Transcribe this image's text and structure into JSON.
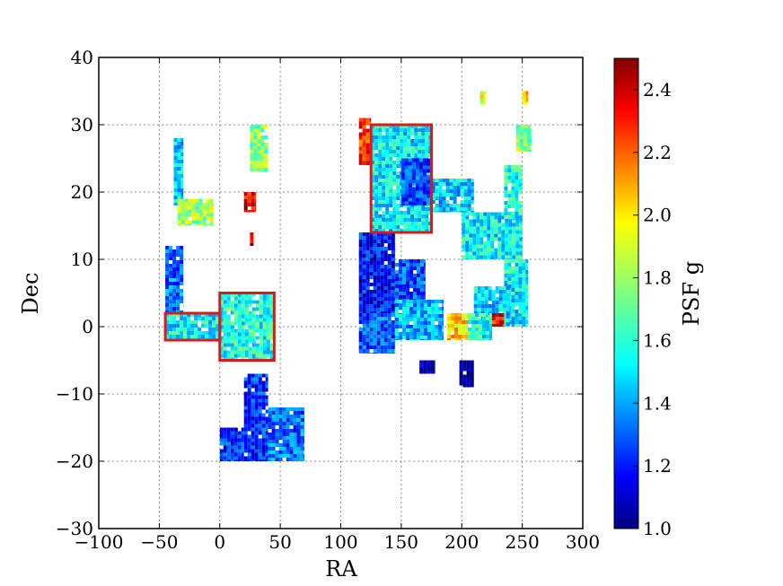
{
  "chart_data": {
    "type": "scatter",
    "xlabel": "RA",
    "ylabel": "Dec",
    "xlim": [
      -100,
      300
    ],
    "ylim": [
      -30,
      40
    ],
    "xticks": [
      -100,
      -50,
      0,
      50,
      100,
      150,
      200,
      250,
      300
    ],
    "yticks": [
      -30,
      -20,
      -10,
      0,
      10,
      20,
      30,
      40
    ],
    "grid": true,
    "colorbar": {
      "label": "PSF g",
      "range": [
        1.0,
        2.5
      ],
      "ticks": [
        1.0,
        1.2,
        1.4,
        1.6,
        1.8,
        2.0,
        2.2,
        2.4
      ],
      "colormap": "jet"
    },
    "regions": [
      {
        "ra_min": 125,
        "ra_max": 175,
        "dec_min": 14,
        "dec_max": 30,
        "psf": 1.55
      },
      {
        "ra_min": 115,
        "ra_max": 125,
        "dec_min": 24,
        "dec_max": 31,
        "psf": 2.25
      },
      {
        "ra_min": 175,
        "ra_max": 210,
        "dec_min": 17,
        "dec_max": 22,
        "psf": 1.5
      },
      {
        "ra_min": 150,
        "ra_max": 175,
        "dec_min": 18,
        "dec_max": 25,
        "psf": 1.3
      },
      {
        "ra_min": 115,
        "ra_max": 145,
        "dec_min": 2,
        "dec_max": 14,
        "psf": 1.2
      },
      {
        "ra_min": 145,
        "ra_max": 170,
        "dec_min": 1,
        "dec_max": 10,
        "psf": 1.3
      },
      {
        "ra_min": 115,
        "ra_max": 145,
        "dec_min": -4,
        "dec_max": 2,
        "psf": 1.3
      },
      {
        "ra_min": 145,
        "ra_max": 185,
        "dec_min": -2,
        "dec_max": 4,
        "psf": 1.45
      },
      {
        "ra_min": 200,
        "ra_max": 250,
        "dec_min": 10,
        "dec_max": 17,
        "psf": 1.55
      },
      {
        "ra_min": 235,
        "ra_max": 255,
        "dec_min": 0,
        "dec_max": 10,
        "psf": 1.55
      },
      {
        "ra_min": 210,
        "ra_max": 240,
        "dec_min": 0,
        "dec_max": 6,
        "psf": 1.5
      },
      {
        "ra_min": 188,
        "ra_max": 205,
        "dec_min": -2,
        "dec_max": 2,
        "psf": 2.0
      },
      {
        "ra_min": 205,
        "ra_max": 225,
        "dec_min": -2,
        "dec_max": 2,
        "psf": 1.6
      },
      {
        "ra_min": 225,
        "ra_max": 235,
        "dec_min": 0,
        "dec_max": 2,
        "psf": 2.3
      },
      {
        "ra_min": 235,
        "ra_max": 250,
        "dec_min": 16,
        "dec_max": 24,
        "psf": 1.6
      },
      {
        "ra_min": 245,
        "ra_max": 258,
        "dec_min": 26,
        "dec_max": 30,
        "psf": 1.75
      },
      {
        "ra_min": 215,
        "ra_max": 220,
        "dec_min": 33,
        "dec_max": 35,
        "psf": 1.9
      },
      {
        "ra_min": 250,
        "ra_max": 255,
        "dec_min": 33,
        "dec_max": 35,
        "psf": 2.05
      },
      {
        "ra_min": 198,
        "ra_max": 210,
        "dec_min": -9,
        "dec_max": -5,
        "psf": 1.0
      },
      {
        "ra_min": 165,
        "ra_max": 178,
        "dec_min": -7,
        "dec_max": -5,
        "psf": 1.05
      },
      {
        "ra_min": 0,
        "ra_max": 45,
        "dec_min": -5,
        "dec_max": 5,
        "psf": 1.6
      },
      {
        "ra_min": -45,
        "ra_max": 0,
        "dec_min": -2,
        "dec_max": 2,
        "psf": 1.55
      },
      {
        "ra_min": -45,
        "ra_max": -30,
        "dec_min": 2,
        "dec_max": 12,
        "psf": 1.35
      },
      {
        "ra_min": -38,
        "ra_max": -30,
        "dec_min": 18,
        "dec_max": 28,
        "psf": 1.5
      },
      {
        "ra_min": -35,
        "ra_max": -5,
        "dec_min": 15,
        "dec_max": 19,
        "psf": 1.8
      },
      {
        "ra_min": 20,
        "ra_max": 40,
        "dec_min": -20,
        "dec_max": -7,
        "psf": 1.25
      },
      {
        "ra_min": 0,
        "ra_max": 20,
        "dec_min": -20,
        "dec_max": -15,
        "psf": 1.25
      },
      {
        "ra_min": 40,
        "ra_max": 70,
        "dec_min": -20,
        "dec_max": -12,
        "psf": 1.35
      },
      {
        "ra_min": 20,
        "ra_max": 30,
        "dec_min": 17,
        "dec_max": 20,
        "psf": 2.35
      },
      {
        "ra_min": 25,
        "ra_max": 28,
        "dec_min": 12,
        "dec_max": 14,
        "psf": 2.4
      },
      {
        "ra_min": 25,
        "ra_max": 40,
        "dec_min": 23,
        "dec_max": 30,
        "psf": 1.75
      }
    ],
    "highlight_boxes": [
      {
        "ra_min": 125,
        "ra_max": 175,
        "dec_min": 14,
        "dec_max": 30
      },
      {
        "ra_min": 0,
        "ra_max": 45,
        "dec_min": -5,
        "dec_max": 5
      },
      {
        "ra_min": -45,
        "ra_max": 0,
        "dec_min": -2,
        "dec_max": 2
      }
    ],
    "highlight_color": "#dd1a1a"
  }
}
